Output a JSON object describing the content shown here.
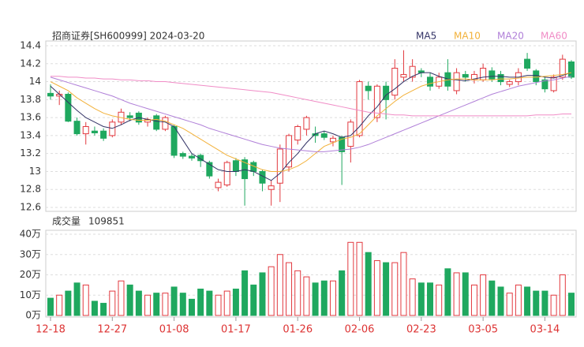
{
  "chart_data": {
    "type": "candlestick",
    "title": "招商证券[SH600999] 2024-03-20",
    "categories": [
      "12-18",
      null,
      null,
      null,
      null,
      null,
      null,
      "12-27",
      null,
      null,
      null,
      null,
      null,
      null,
      "01-08",
      null,
      null,
      null,
      null,
      null,
      null,
      "01-17",
      null,
      null,
      null,
      null,
      null,
      null,
      "01-26",
      null,
      null,
      null,
      null,
      null,
      null,
      "02-06",
      null,
      null,
      null,
      null,
      null,
      null,
      "02-23",
      null,
      null,
      null,
      null,
      null,
      null,
      "03-05",
      null,
      null,
      null,
      null,
      null,
      null,
      "03-14",
      null,
      null,
      null
    ],
    "open": [
      13.87,
      13.84,
      13.86,
      13.56,
      13.42,
      13.45,
      13.45,
      13.4,
      13.55,
      13.62,
      13.65,
      13.55,
      13.62,
      13.47,
      13.5,
      13.2,
      13.17,
      13.18,
      13.1,
      12.82,
      12.85,
      13.12,
      13.13,
      13.1,
      13.0,
      12.8,
      12.87,
      13.05,
      13.35,
      13.47,
      13.42,
      13.42,
      13.33,
      13.38,
      13.28,
      13.4,
      13.95,
      13.6,
      13.95,
      13.85,
      14.05,
      14.05,
      14.12,
      14.05,
      13.95,
      14.1,
      13.9,
      14.08,
      14.02,
      14.02,
      14.12,
      14.08,
      13.97,
      14.0,
      14.25,
      14.12,
      14.02,
      13.9,
      14.05,
      14.22
    ],
    "high": [
      13.97,
      13.9,
      13.88,
      13.6,
      13.55,
      13.5,
      13.48,
      13.58,
      13.7,
      13.66,
      13.67,
      13.6,
      13.64,
      13.62,
      13.52,
      13.22,
      13.2,
      13.2,
      13.12,
      12.92,
      13.12,
      13.15,
      13.16,
      13.12,
      13.02,
      12.9,
      13.3,
      13.42,
      13.52,
      13.62,
      13.5,
      13.45,
      13.4,
      13.4,
      13.58,
      14.02,
      14.0,
      13.97,
      14.0,
      14.25,
      14.35,
      14.25,
      14.15,
      14.1,
      14.1,
      14.25,
      14.15,
      14.12,
      14.12,
      14.2,
      14.16,
      14.12,
      14.02,
      14.15,
      14.32,
      14.14,
      14.06,
      14.08,
      14.3,
      14.24
    ],
    "low": [
      13.8,
      13.74,
      13.55,
      13.4,
      13.3,
      13.4,
      13.34,
      13.38,
      13.52,
      13.56,
      13.52,
      13.5,
      13.45,
      13.45,
      13.15,
      13.14,
      13.12,
      13.05,
      12.92,
      12.78,
      12.83,
      12.95,
      12.62,
      12.95,
      12.78,
      12.62,
      12.66,
      13.0,
      13.3,
      13.4,
      13.32,
      13.35,
      13.28,
      12.85,
      13.1,
      13.38,
      13.8,
      13.55,
      13.58,
      13.8,
      14.0,
      14.0,
      14.05,
      13.9,
      13.92,
      13.9,
      13.86,
      14.0,
      13.98,
      14.0,
      14.0,
      13.96,
      13.94,
      13.96,
      14.12,
      13.96,
      13.88,
      13.88,
      14.02,
      14.03
    ],
    "close": [
      13.84,
      13.86,
      13.56,
      13.42,
      13.5,
      13.43,
      13.37,
      13.55,
      13.66,
      13.6,
      13.55,
      13.58,
      13.47,
      13.6,
      13.18,
      13.17,
      13.15,
      13.12,
      12.95,
      12.88,
      13.1,
      13.0,
      12.92,
      13.0,
      12.87,
      12.84,
      13.25,
      13.4,
      13.5,
      13.6,
      13.4,
      13.38,
      13.37,
      13.22,
      13.55,
      14.0,
      13.9,
      13.95,
      13.8,
      14.15,
      14.08,
      14.17,
      14.1,
      13.95,
      14.05,
      13.95,
      14.1,
      14.05,
      14.08,
      14.15,
      14.03,
      14.0,
      14.0,
      14.1,
      14.15,
      14.0,
      13.92,
      14.05,
      14.25,
      14.05
    ],
    "series": [
      {
        "name": "MA5",
        "color": "#333366",
        "values": [
          13.95,
          13.86,
          13.77,
          13.68,
          13.6,
          13.55,
          13.5,
          13.48,
          13.52,
          13.57,
          13.6,
          13.58,
          13.56,
          13.55,
          13.5,
          13.35,
          13.2,
          13.14,
          13.08,
          13.02,
          13.0,
          13.0,
          13.02,
          13.0,
          12.95,
          12.9,
          12.98,
          13.1,
          13.2,
          13.32,
          13.42,
          13.45,
          13.42,
          13.38,
          13.4,
          13.5,
          13.62,
          13.72,
          13.85,
          13.92,
          14.0,
          14.06,
          14.1,
          14.1,
          14.06,
          14.03,
          14.02,
          14.01,
          14.03,
          14.05,
          14.06,
          14.06,
          14.05,
          14.05,
          14.07,
          14.07,
          14.05,
          14.04,
          14.07,
          14.1
        ]
      },
      {
        "name": "MA10",
        "color": "#f2b13a",
        "values": [
          14.0,
          13.95,
          13.9,
          13.82,
          13.76,
          13.7,
          13.65,
          13.62,
          13.6,
          13.58,
          13.57,
          13.57,
          13.58,
          13.56,
          13.52,
          13.48,
          13.42,
          13.36,
          13.3,
          13.24,
          13.18,
          13.14,
          13.1,
          13.06,
          13.02,
          13.0,
          13.0,
          13.02,
          13.06,
          13.12,
          13.2,
          13.28,
          13.32,
          13.36,
          13.38,
          13.42,
          13.52,
          13.62,
          13.7,
          13.78,
          13.85,
          13.9,
          13.95,
          13.98,
          14.0,
          14.02,
          14.03,
          14.03,
          14.02,
          14.02,
          14.02,
          14.03,
          14.03,
          14.04,
          14.05,
          14.05,
          14.06,
          14.07,
          14.08,
          14.1
        ]
      },
      {
        "name": "MA20",
        "color": "#b07fd8",
        "values": [
          14.05,
          14.02,
          13.99,
          13.96,
          13.93,
          13.9,
          13.87,
          13.84,
          13.8,
          13.76,
          13.73,
          13.7,
          13.67,
          13.64,
          13.61,
          13.58,
          13.55,
          13.52,
          13.48,
          13.45,
          13.42,
          13.39,
          13.36,
          13.33,
          13.3,
          13.28,
          13.26,
          13.25,
          13.24,
          13.23,
          13.22,
          13.22,
          13.23,
          13.24,
          13.25,
          13.27,
          13.3,
          13.34,
          13.38,
          13.42,
          13.46,
          13.5,
          13.54,
          13.58,
          13.62,
          13.66,
          13.7,
          13.74,
          13.78,
          13.82,
          13.86,
          13.89,
          13.92,
          13.95,
          13.97,
          13.99,
          14.01,
          14.02,
          14.04,
          14.06
        ]
      },
      {
        "name": "MA60",
        "color": "#f08cc6",
        "values": [
          14.06,
          14.06,
          14.05,
          14.05,
          14.04,
          14.04,
          14.03,
          14.03,
          14.02,
          14.02,
          14.01,
          14.01,
          14.0,
          14.0,
          13.99,
          13.98,
          13.97,
          13.96,
          13.95,
          13.94,
          13.93,
          13.92,
          13.91,
          13.9,
          13.89,
          13.88,
          13.86,
          13.84,
          13.82,
          13.8,
          13.78,
          13.76,
          13.74,
          13.72,
          13.7,
          13.68,
          13.66,
          13.65,
          13.64,
          13.63,
          13.63,
          13.62,
          13.62,
          13.62,
          13.62,
          13.62,
          13.62,
          13.62,
          13.62,
          13.62,
          13.62,
          13.62,
          13.62,
          13.62,
          13.62,
          13.63,
          13.63,
          13.63,
          13.64,
          13.64
        ]
      }
    ],
    "ylim": [
      12.6,
      14.4
    ],
    "yticks": [
      14.4,
      14.2,
      14,
      13.8,
      13.6,
      13.4,
      13.2,
      13,
      12.8,
      12.6
    ],
    "grid": true,
    "up_color": "#e2393f",
    "down_color": "#1fa85f",
    "volume_title": "成交量",
    "volume_latest": 109851,
    "volume": [
      8.5,
      10,
      12,
      16,
      15,
      7,
      6,
      12,
      17,
      15,
      12,
      10,
      11,
      11,
      14,
      11,
      8,
      13,
      12,
      10,
      12,
      13,
      22,
      15,
      21,
      24,
      30,
      26,
      22,
      19,
      16,
      17,
      17,
      22,
      36,
      36,
      31,
      27,
      26,
      26,
      31,
      18,
      16,
      16,
      15,
      23,
      21,
      21,
      15,
      20,
      17,
      14,
      11,
      15,
      14,
      12,
      12,
      10,
      20,
      11
    ],
    "volume_ylim": [
      0,
      40
    ],
    "volume_yticks": [
      {
        "value": 40,
        "label": "40万"
      },
      {
        "value": 30,
        "label": "30万"
      },
      {
        "value": 20,
        "label": "20万"
      },
      {
        "value": 10,
        "label": "10万"
      },
      {
        "value": 0,
        "label": "0万"
      }
    ]
  }
}
